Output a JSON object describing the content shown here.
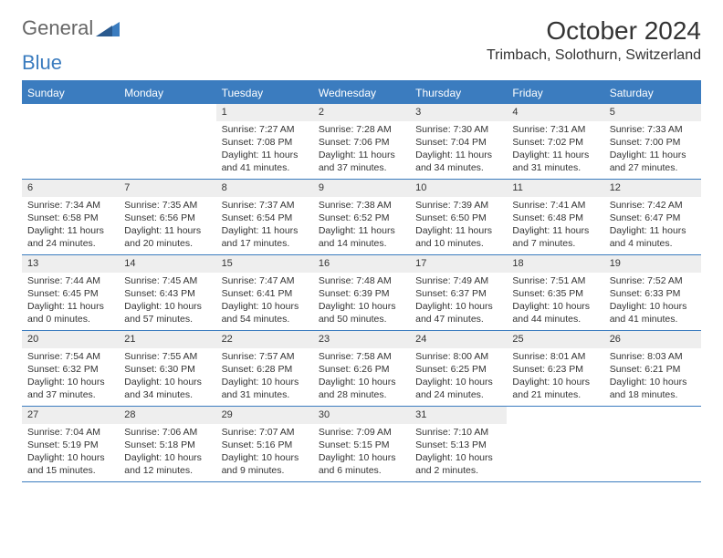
{
  "logo": {
    "text1": "General",
    "text2": "Blue"
  },
  "header": {
    "month": "October 2024",
    "location": "Trimbach, Solothurn, Switzerland"
  },
  "colors": {
    "accent": "#3b7cbf",
    "header_text": "#ffffff",
    "day_bar": "#eeeeee",
    "body_text": "#333333",
    "logo_gray": "#666666"
  },
  "weekdays": [
    "Sunday",
    "Monday",
    "Tuesday",
    "Wednesday",
    "Thursday",
    "Friday",
    "Saturday"
  ],
  "weeks": [
    [
      {
        "empty": true
      },
      {
        "empty": true
      },
      {
        "n": "1",
        "rise": "7:27 AM",
        "set": "7:08 PM",
        "dl": "11 hours and 41 minutes."
      },
      {
        "n": "2",
        "rise": "7:28 AM",
        "set": "7:06 PM",
        "dl": "11 hours and 37 minutes."
      },
      {
        "n": "3",
        "rise": "7:30 AM",
        "set": "7:04 PM",
        "dl": "11 hours and 34 minutes."
      },
      {
        "n": "4",
        "rise": "7:31 AM",
        "set": "7:02 PM",
        "dl": "11 hours and 31 minutes."
      },
      {
        "n": "5",
        "rise": "7:33 AM",
        "set": "7:00 PM",
        "dl": "11 hours and 27 minutes."
      }
    ],
    [
      {
        "n": "6",
        "rise": "7:34 AM",
        "set": "6:58 PM",
        "dl": "11 hours and 24 minutes."
      },
      {
        "n": "7",
        "rise": "7:35 AM",
        "set": "6:56 PM",
        "dl": "11 hours and 20 minutes."
      },
      {
        "n": "8",
        "rise": "7:37 AM",
        "set": "6:54 PM",
        "dl": "11 hours and 17 minutes."
      },
      {
        "n": "9",
        "rise": "7:38 AM",
        "set": "6:52 PM",
        "dl": "11 hours and 14 minutes."
      },
      {
        "n": "10",
        "rise": "7:39 AM",
        "set": "6:50 PM",
        "dl": "11 hours and 10 minutes."
      },
      {
        "n": "11",
        "rise": "7:41 AM",
        "set": "6:48 PM",
        "dl": "11 hours and 7 minutes."
      },
      {
        "n": "12",
        "rise": "7:42 AM",
        "set": "6:47 PM",
        "dl": "11 hours and 4 minutes."
      }
    ],
    [
      {
        "n": "13",
        "rise": "7:44 AM",
        "set": "6:45 PM",
        "dl": "11 hours and 0 minutes."
      },
      {
        "n": "14",
        "rise": "7:45 AM",
        "set": "6:43 PM",
        "dl": "10 hours and 57 minutes."
      },
      {
        "n": "15",
        "rise": "7:47 AM",
        "set": "6:41 PM",
        "dl": "10 hours and 54 minutes."
      },
      {
        "n": "16",
        "rise": "7:48 AM",
        "set": "6:39 PM",
        "dl": "10 hours and 50 minutes."
      },
      {
        "n": "17",
        "rise": "7:49 AM",
        "set": "6:37 PM",
        "dl": "10 hours and 47 minutes."
      },
      {
        "n": "18",
        "rise": "7:51 AM",
        "set": "6:35 PM",
        "dl": "10 hours and 44 minutes."
      },
      {
        "n": "19",
        "rise": "7:52 AM",
        "set": "6:33 PM",
        "dl": "10 hours and 41 minutes."
      }
    ],
    [
      {
        "n": "20",
        "rise": "7:54 AM",
        "set": "6:32 PM",
        "dl": "10 hours and 37 minutes."
      },
      {
        "n": "21",
        "rise": "7:55 AM",
        "set": "6:30 PM",
        "dl": "10 hours and 34 minutes."
      },
      {
        "n": "22",
        "rise": "7:57 AM",
        "set": "6:28 PM",
        "dl": "10 hours and 31 minutes."
      },
      {
        "n": "23",
        "rise": "7:58 AM",
        "set": "6:26 PM",
        "dl": "10 hours and 28 minutes."
      },
      {
        "n": "24",
        "rise": "8:00 AM",
        "set": "6:25 PM",
        "dl": "10 hours and 24 minutes."
      },
      {
        "n": "25",
        "rise": "8:01 AM",
        "set": "6:23 PM",
        "dl": "10 hours and 21 minutes."
      },
      {
        "n": "26",
        "rise": "8:03 AM",
        "set": "6:21 PM",
        "dl": "10 hours and 18 minutes."
      }
    ],
    [
      {
        "n": "27",
        "rise": "7:04 AM",
        "set": "5:19 PM",
        "dl": "10 hours and 15 minutes."
      },
      {
        "n": "28",
        "rise": "7:06 AM",
        "set": "5:18 PM",
        "dl": "10 hours and 12 minutes."
      },
      {
        "n": "29",
        "rise": "7:07 AM",
        "set": "5:16 PM",
        "dl": "10 hours and 9 minutes."
      },
      {
        "n": "30",
        "rise": "7:09 AM",
        "set": "5:15 PM",
        "dl": "10 hours and 6 minutes."
      },
      {
        "n": "31",
        "rise": "7:10 AM",
        "set": "5:13 PM",
        "dl": "10 hours and 2 minutes."
      },
      {
        "empty": true
      },
      {
        "empty": true
      }
    ]
  ],
  "labels": {
    "sunrise": "Sunrise: ",
    "sunset": "Sunset: ",
    "daylight": "Daylight: "
  }
}
